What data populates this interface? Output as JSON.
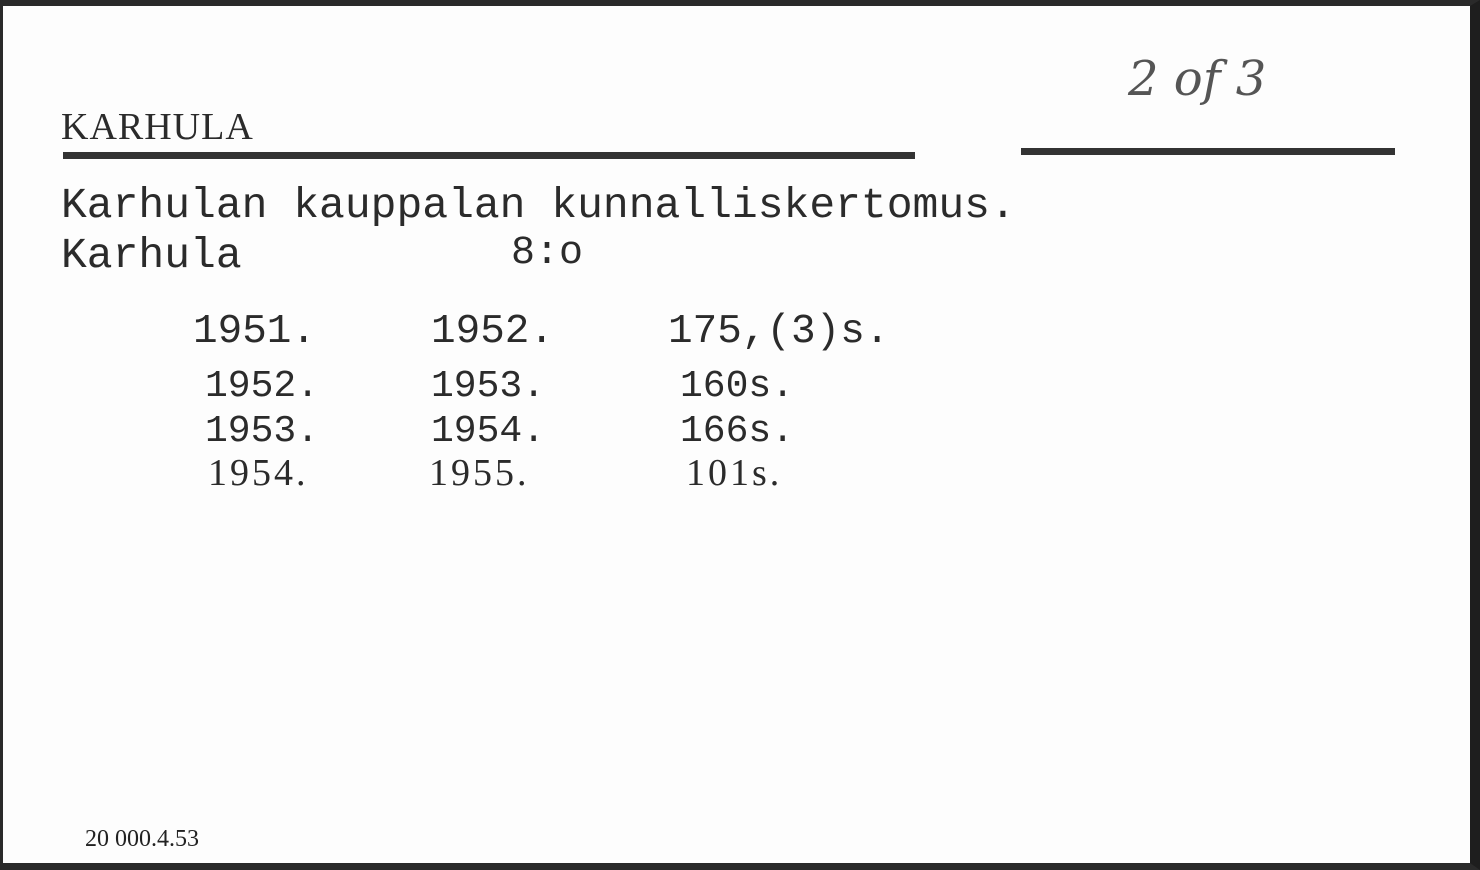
{
  "card": {
    "heading": "KARHULA",
    "handwritten_note": "2 of 3",
    "title": "Karhulan kauppalan kunnalliskertomus.",
    "place": "Karhula",
    "format": "8:o",
    "entries": [
      {
        "from": "1951.",
        "to": "1952.",
        "pages": "175,(3)s."
      },
      {
        "from": "1952.",
        "to": "1953.",
        "pages": "160s."
      },
      {
        "from": "1953.",
        "to": "1954.",
        "pages": "166s."
      },
      {
        "from": "1954.",
        "to": "1955.",
        "pages": "101s."
      }
    ],
    "print_code": "20 000.4.53"
  }
}
